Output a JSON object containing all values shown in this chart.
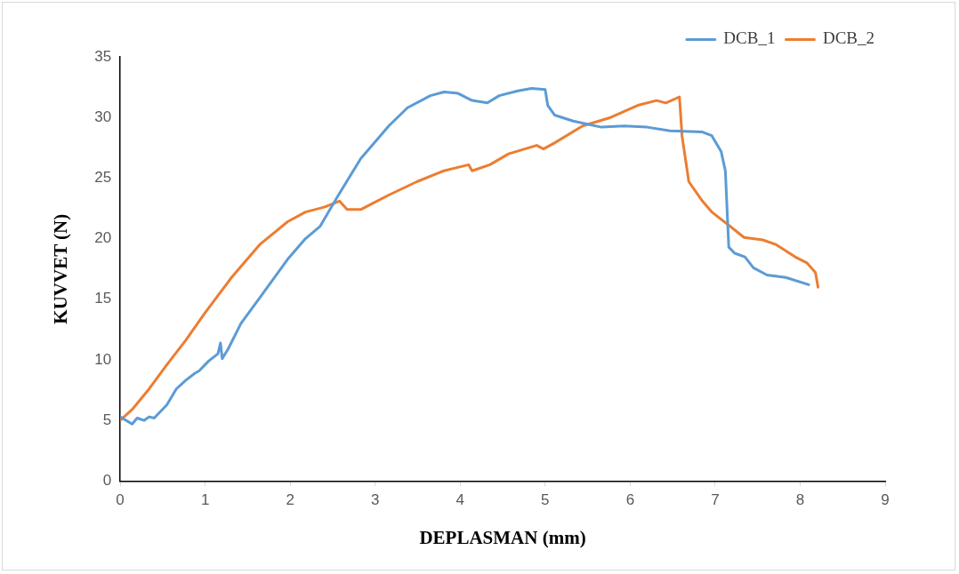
{
  "chart_data": {
    "type": "line",
    "xlabel": "DEPLASMAN (mm)",
    "ylabel": "KUVVET (N)",
    "xlim": [
      0,
      9
    ],
    "xticks": [
      0,
      1,
      2,
      3,
      4,
      5,
      6,
      7,
      8,
      9
    ],
    "ylim": [
      0,
      35
    ],
    "yticks": [
      0,
      5,
      10,
      15,
      20,
      25,
      30,
      35
    ],
    "grid": false,
    "legend": "top right",
    "marker": "none",
    "line_style": "solid",
    "series": [
      {
        "name": "DCB_1",
        "color": "#5b9bd5",
        "x": [
          0,
          0.14,
          0.2,
          0.28,
          0.34,
          0.4,
          0.55,
          0.66,
          0.77,
          0.88,
          0.93,
          1.04,
          1.15,
          1.18,
          1.2,
          1.27,
          1.42,
          1.64,
          1.97,
          2.18,
          2.35,
          2.56,
          2.83,
          3.16,
          3.38,
          3.65,
          3.81,
          3.97,
          4.14,
          4.32,
          4.46,
          4.68,
          4.84,
          5.0,
          5.03,
          5.11,
          5.33,
          5.66,
          5.93,
          6.2,
          6.47,
          6.85,
          6.96,
          7.07,
          7.12,
          7.16,
          7.23,
          7.35,
          7.45,
          7.61,
          7.83,
          8.1
        ],
        "values": [
          5.3,
          4.7,
          5.2,
          5.0,
          5.3,
          5.2,
          6.3,
          7.6,
          8.3,
          8.9,
          9.1,
          9.9,
          10.5,
          11.4,
          10.1,
          10.9,
          13.0,
          15.1,
          18.3,
          20.0,
          21.0,
          23.5,
          26.6,
          29.3,
          30.8,
          31.8,
          32.1,
          32.0,
          31.4,
          31.2,
          31.8,
          32.2,
          32.4,
          32.3,
          31.0,
          30.2,
          29.7,
          29.2,
          29.3,
          29.2,
          28.9,
          28.8,
          28.5,
          27.2,
          25.6,
          19.3,
          18.8,
          18.5,
          17.6,
          17.0,
          16.8,
          16.2
        ]
      },
      {
        "name": "DCB_2",
        "color": "#ed7d31",
        "x": [
          0,
          0.14,
          0.34,
          0.55,
          0.77,
          0.99,
          1.31,
          1.64,
          1.97,
          2.18,
          2.4,
          2.58,
          2.67,
          2.83,
          2.94,
          3.16,
          3.49,
          3.81,
          4.1,
          4.14,
          4.35,
          4.57,
          4.9,
          4.98,
          5.11,
          5.44,
          5.77,
          6.09,
          6.31,
          6.42,
          6.58,
          6.61,
          6.69,
          6.85,
          6.96,
          7.18,
          7.34,
          7.56,
          7.72,
          7.94,
          8.08,
          8.18,
          8.21
        ],
        "values": [
          5.0,
          5.9,
          7.6,
          9.6,
          11.6,
          13.8,
          16.8,
          19.5,
          21.4,
          22.2,
          22.6,
          23.1,
          22.4,
          22.4,
          22.8,
          23.6,
          24.7,
          25.6,
          26.1,
          25.6,
          26.1,
          27.0,
          27.7,
          27.4,
          27.9,
          29.3,
          30.0,
          31.0,
          31.4,
          31.2,
          31.7,
          28.5,
          24.7,
          23.1,
          22.2,
          21.0,
          20.1,
          19.9,
          19.5,
          18.5,
          18.0,
          17.2,
          16.0
        ]
      }
    ]
  }
}
